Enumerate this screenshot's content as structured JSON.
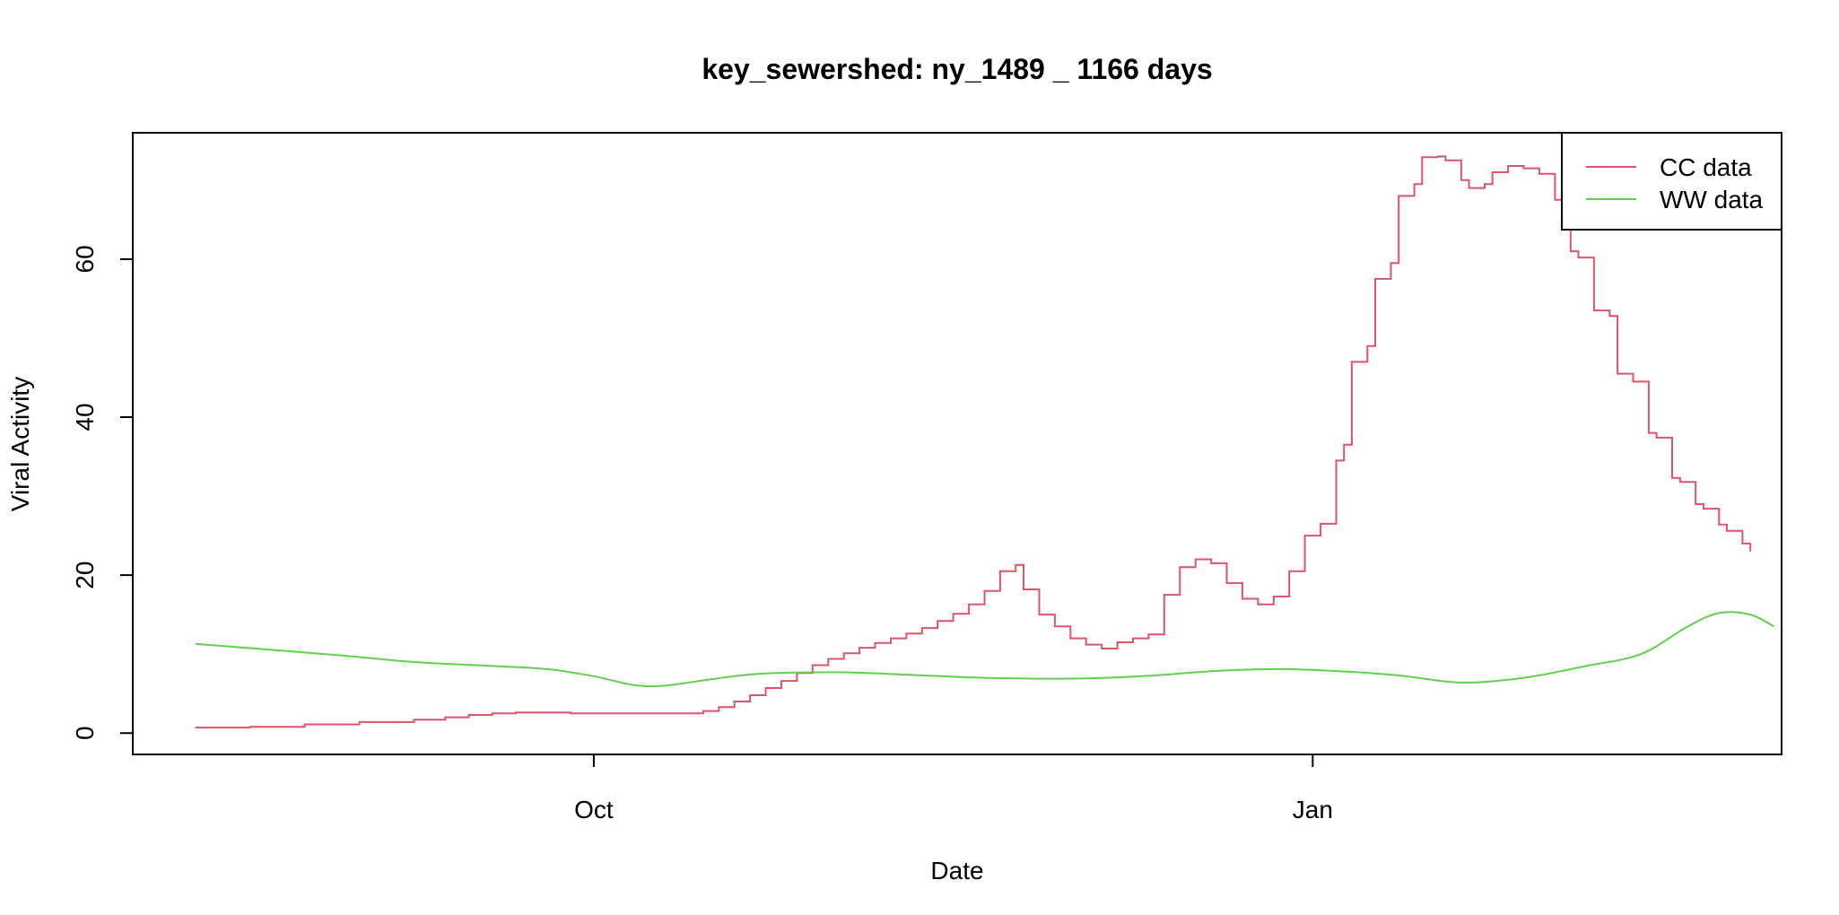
{
  "chart_data": {
    "type": "line",
    "title": "key_sewershed:  ny_1489 _ 1166  days",
    "xlabel": "Date",
    "ylabel": "Viral Activity",
    "xlim": [
      "2024-08-03",
      "2025-03-02"
    ],
    "ylim": [
      -2.7,
      76
    ],
    "x_ticks": [
      {
        "date": "2024-10-01",
        "label": "Oct"
      },
      {
        "date": "2025-01-01",
        "label": "Jan"
      }
    ],
    "y_ticks": [
      0,
      20,
      40,
      60
    ],
    "grid": false,
    "legend_position": "top-right",
    "series": [
      {
        "name": "CC data",
        "color": "#DF536B",
        "style": "step",
        "points": [
          [
            "2024-08-11",
            0.7
          ],
          [
            "2024-08-18",
            0.8
          ],
          [
            "2024-08-25",
            1.1
          ],
          [
            "2024-09-01",
            1.4
          ],
          [
            "2024-09-08",
            1.7
          ],
          [
            "2024-09-12",
            2.0
          ],
          [
            "2024-09-15",
            2.3
          ],
          [
            "2024-09-18",
            2.5
          ],
          [
            "2024-09-21",
            2.6
          ],
          [
            "2024-09-28",
            2.5
          ],
          [
            "2024-10-05",
            2.5
          ],
          [
            "2024-10-12",
            2.5
          ],
          [
            "2024-10-15",
            2.8
          ],
          [
            "2024-10-17",
            3.3
          ],
          [
            "2024-10-19",
            4.0
          ],
          [
            "2024-10-21",
            4.8
          ],
          [
            "2024-10-23",
            5.7
          ],
          [
            "2024-10-25",
            6.6
          ],
          [
            "2024-10-27",
            7.6
          ],
          [
            "2024-10-29",
            8.6
          ],
          [
            "2024-10-31",
            9.4
          ],
          [
            "2024-11-02",
            10.1
          ],
          [
            "2024-11-04",
            10.8
          ],
          [
            "2024-11-06",
            11.4
          ],
          [
            "2024-11-08",
            12.0
          ],
          [
            "2024-11-10",
            12.6
          ],
          [
            "2024-11-12",
            13.3
          ],
          [
            "2024-11-14",
            14.2
          ],
          [
            "2024-11-16",
            15.1
          ],
          [
            "2024-11-18",
            16.3
          ],
          [
            "2024-11-20",
            18.0
          ],
          [
            "2024-11-22",
            20.5
          ],
          [
            "2024-11-24",
            21.3
          ],
          [
            "2024-11-25",
            18.2
          ],
          [
            "2024-11-27",
            15.0
          ],
          [
            "2024-11-29",
            13.5
          ],
          [
            "2024-12-01",
            12.0
          ],
          [
            "2024-12-03",
            11.2
          ],
          [
            "2024-12-05",
            10.7
          ],
          [
            "2024-12-07",
            11.5
          ],
          [
            "2024-12-09",
            12.0
          ],
          [
            "2024-12-11",
            12.5
          ],
          [
            "2024-12-13",
            17.5
          ],
          [
            "2024-12-15",
            21.0
          ],
          [
            "2024-12-17",
            22.0
          ],
          [
            "2024-12-19",
            21.5
          ],
          [
            "2024-12-21",
            19.0
          ],
          [
            "2024-12-23",
            17.0
          ],
          [
            "2024-12-25",
            16.3
          ],
          [
            "2024-12-27",
            17.3
          ],
          [
            "2024-12-29",
            20.5
          ],
          [
            "2024-12-31",
            25.0
          ],
          [
            "2025-01-02",
            26.5
          ],
          [
            "2025-01-04",
            34.5
          ],
          [
            "2025-01-05",
            36.5
          ],
          [
            "2025-01-06",
            47.0
          ],
          [
            "2025-01-08",
            49.0
          ],
          [
            "2025-01-09",
            57.5
          ],
          [
            "2025-01-11",
            59.5
          ],
          [
            "2025-01-12",
            68.0
          ],
          [
            "2025-01-14",
            69.5
          ],
          [
            "2025-01-15",
            72.9
          ],
          [
            "2025-01-17",
            73.0
          ],
          [
            "2025-01-18",
            72.5
          ],
          [
            "2025-01-20",
            70.0
          ],
          [
            "2025-01-21",
            69.0
          ],
          [
            "2025-01-23",
            69.5
          ],
          [
            "2025-01-24",
            71.0
          ],
          [
            "2025-01-26",
            71.8
          ],
          [
            "2025-01-28",
            71.5
          ],
          [
            "2025-01-30",
            70.8
          ],
          [
            "2025-02-01",
            67.5
          ],
          [
            "2025-02-02",
            66.5
          ],
          [
            "2025-02-03",
            61.0
          ],
          [
            "2025-02-04",
            60.2
          ],
          [
            "2025-02-06",
            53.5
          ],
          [
            "2025-02-08",
            52.8
          ],
          [
            "2025-02-09",
            45.5
          ],
          [
            "2025-02-11",
            44.5
          ],
          [
            "2025-02-13",
            38.0
          ],
          [
            "2025-02-14",
            37.4
          ],
          [
            "2025-02-16",
            32.3
          ],
          [
            "2025-02-17",
            31.8
          ],
          [
            "2025-02-19",
            29.0
          ],
          [
            "2025-02-20",
            28.4
          ],
          [
            "2025-02-22",
            26.4
          ],
          [
            "2025-02-23",
            25.6
          ],
          [
            "2025-02-25",
            24.0
          ],
          [
            "2025-02-26",
            23.0
          ]
        ]
      },
      {
        "name": "WW data",
        "color": "#61D04F",
        "style": "smooth",
        "points": [
          [
            "2024-08-11",
            11.3
          ],
          [
            "2024-08-20",
            10.6
          ],
          [
            "2024-08-30",
            9.8
          ],
          [
            "2024-09-08",
            9.0
          ],
          [
            "2024-09-18",
            8.5
          ],
          [
            "2024-09-25",
            8.1
          ],
          [
            "2024-10-01",
            7.2
          ],
          [
            "2024-10-06",
            6.1
          ],
          [
            "2024-10-10",
            6.0
          ],
          [
            "2024-10-16",
            6.8
          ],
          [
            "2024-10-22",
            7.5
          ],
          [
            "2024-11-01",
            7.7
          ],
          [
            "2024-11-10",
            7.4
          ],
          [
            "2024-11-20",
            7.0
          ],
          [
            "2024-12-01",
            6.9
          ],
          [
            "2024-12-10",
            7.2
          ],
          [
            "2024-12-20",
            7.9
          ],
          [
            "2024-12-28",
            8.1
          ],
          [
            "2025-01-05",
            7.8
          ],
          [
            "2025-01-12",
            7.3
          ],
          [
            "2025-01-20",
            6.4
          ],
          [
            "2025-01-28",
            7.0
          ],
          [
            "2025-02-05",
            8.5
          ],
          [
            "2025-02-12",
            10.0
          ],
          [
            "2025-02-18",
            13.5
          ],
          [
            "2025-02-22",
            15.2
          ],
          [
            "2025-02-26",
            15.0
          ],
          [
            "2025-03-01",
            13.5
          ]
        ]
      }
    ]
  }
}
